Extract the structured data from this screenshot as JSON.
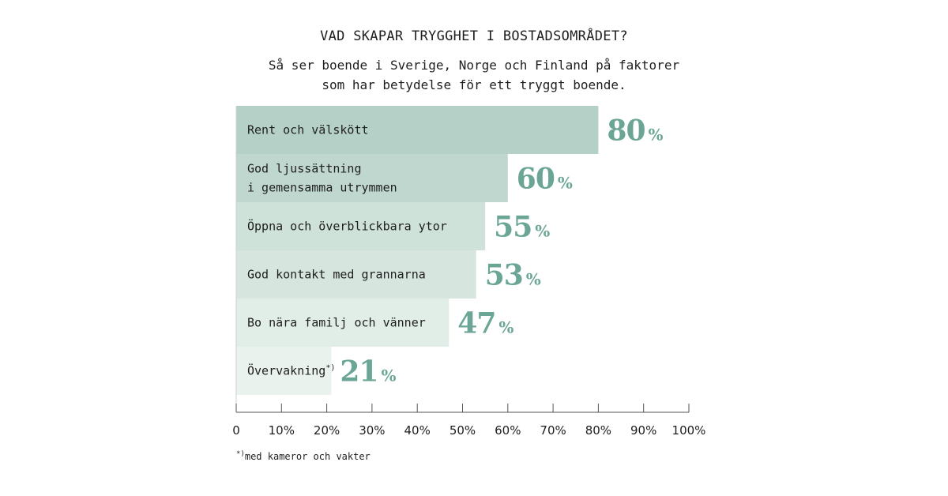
{
  "header": {
    "title": "VAD SKAPAR TRYGGHET I BOSTADSOMRÅDET?",
    "subtitle_line1": "Så ser boende i Sverige, Norge och Finland på faktorer",
    "subtitle_line2": "som har betydelse för ett tryggt boende."
  },
  "chart_data": {
    "type": "bar",
    "orientation": "horizontal",
    "title": "VAD SKAPAR TRYGGHET I BOSTADSOMRÅDET?",
    "categories": [
      [
        "Rent och välskött"
      ],
      [
        "God ljussättning",
        "i gemensamma utrymmen"
      ],
      [
        "Öppna och överblickbara ytor"
      ],
      [
        "God kontakt med grannarna"
      ],
      [
        "Bo nära familj och vänner"
      ],
      [
        "Övervakning"
      ]
    ],
    "category_marks": [
      "",
      "",
      "",
      "",
      "",
      "*)"
    ],
    "values": [
      80,
      60,
      55,
      53,
      47,
      21
    ],
    "value_suffix": "%",
    "bar_colors": [
      "#b5d0c6",
      "#bfd7ce",
      "#cfe2da",
      "#d6e6df",
      "#e1ede7",
      "#eaf2ee"
    ],
    "xlim": [
      0,
      100
    ],
    "tick_labels": [
      "0",
      "10%",
      "20%",
      "30%",
      "40%",
      "50%",
      "60%",
      "70%",
      "80%",
      "90%",
      "100%"
    ],
    "xlabel": "",
    "ylabel": ""
  },
  "footnote": {
    "mark": "*)",
    "text": "med kameror och vakter"
  }
}
